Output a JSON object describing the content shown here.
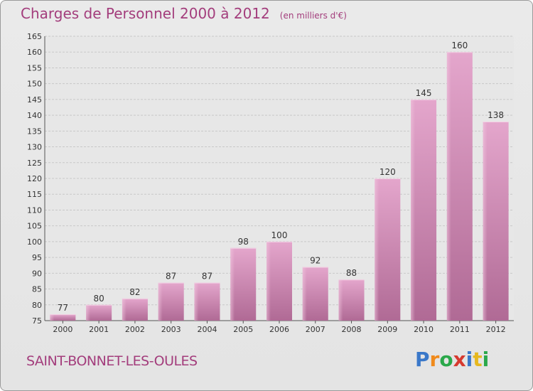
{
  "chart_data": {
    "type": "bar",
    "title": "Charges de Personnel 2000 à 2012",
    "subtitle": "(en milliers d'€)",
    "categories": [
      "2000",
      "2001",
      "2002",
      "2003",
      "2004",
      "2005",
      "2006",
      "2007",
      "2008",
      "2009",
      "2010",
      "2011",
      "2012"
    ],
    "values": [
      77,
      80,
      82,
      87,
      87,
      98,
      100,
      92,
      88,
      120,
      145,
      160,
      138
    ],
    "ylim": [
      75,
      165
    ],
    "yticks": [
      75,
      80,
      85,
      90,
      95,
      100,
      105,
      110,
      115,
      120,
      125,
      130,
      135,
      140,
      145,
      150,
      155,
      160,
      165
    ],
    "grid": true,
    "bar_color": "#d98cb8"
  },
  "commune": "SAINT-BONNET-LES-OULES",
  "logo": {
    "letters": [
      "P",
      "r",
      "o",
      "x",
      "i",
      "t",
      "i"
    ],
    "colors": [
      "#3a78c9",
      "#f08a1c",
      "#2aa84a",
      "#d63a2f",
      "#3a78c9",
      "#e6b820",
      "#2aa84a"
    ]
  }
}
